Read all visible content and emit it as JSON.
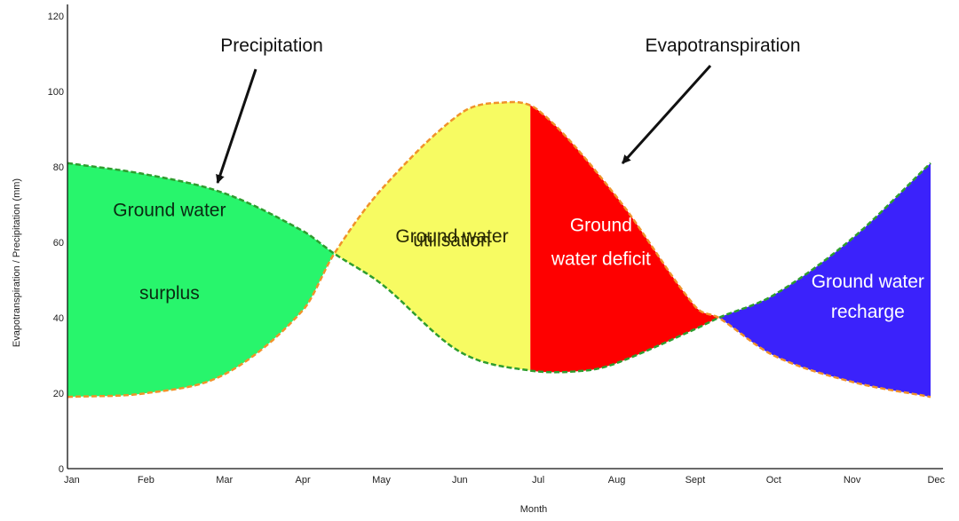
{
  "chart_data": {
    "type": "area",
    "title": "",
    "xlabel": "Month",
    "ylabel": "Evapotranspiration / Precipitation (mm)",
    "categories": [
      "Jan",
      "Feb",
      "Mar",
      "Apr",
      "May",
      "Jun",
      "Jul",
      "Aug",
      "Sept",
      "Oct",
      "Nov",
      "Dec"
    ],
    "y_ticks": [
      "0",
      "20",
      "40",
      "60",
      "80",
      "100",
      "120"
    ],
    "ylim": [
      0,
      120
    ],
    "grid": false,
    "series": [
      {
        "name": "Precipitation",
        "color": "#2e9d2e",
        "style": "dashed",
        "x": [
          0,
          1,
          2,
          3,
          3.4,
          4,
          5,
          5.9,
          6.6,
          7,
          8,
          8.3,
          9,
          10,
          11
        ],
        "values": [
          81,
          78,
          73,
          63,
          57,
          49,
          31,
          26,
          26,
          28,
          37,
          40,
          46,
          61,
          81
        ]
      },
      {
        "name": "Evapotranspiration",
        "color": "#f0922a",
        "style": "dashed",
        "x": [
          0,
          1,
          2,
          3,
          3.4,
          4,
          5,
          5.5,
          6,
          7,
          8,
          8.3,
          9,
          10,
          11
        ],
        "values": [
          19,
          20,
          25,
          42,
          57,
          74,
          94,
          97,
          95,
          72,
          43,
          40,
          30,
          23,
          19
        ]
      }
    ],
    "regions": [
      {
        "label_lines": [
          "Ground water",
          "surplus"
        ],
        "color": "#28f56c",
        "text_color": "#0a2a12"
      },
      {
        "label_lines": [
          "Ground water",
          "utilisation"
        ],
        "color": "#f7fb62",
        "text_color": "#2a2a05"
      },
      {
        "label_lines": [
          "Ground",
          "water deficit"
        ],
        "color": "#fe0000",
        "text_color": "#ffffff"
      },
      {
        "label_lines": [
          "Ground water",
          "recharge"
        ],
        "color": "#3b22fb",
        "text_color": "#ffffff"
      }
    ],
    "annotations": [
      {
        "text": "Precipitation",
        "target_series": "Precipitation"
      },
      {
        "text": "Evapotranspiration",
        "target_series": "Evapotranspiration"
      }
    ]
  }
}
